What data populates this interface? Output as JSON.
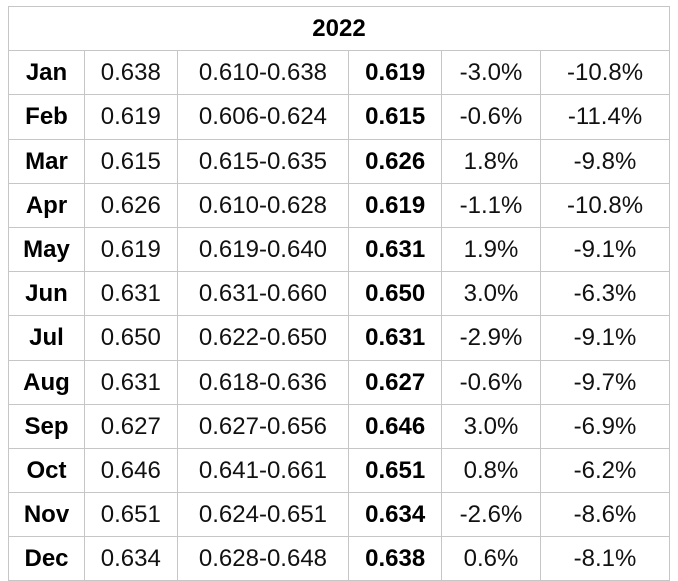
{
  "year": "2022",
  "rows": [
    {
      "month": "Jan",
      "open": "0.638",
      "range": "0.610-0.638",
      "close": "0.619",
      "pct1": "-3.0%",
      "pct2": "-10.8%"
    },
    {
      "month": "Feb",
      "open": "0.619",
      "range": "0.606-0.624",
      "close": "0.615",
      "pct1": "-0.6%",
      "pct2": "-11.4%"
    },
    {
      "month": "Mar",
      "open": "0.615",
      "range": "0.615-0.635",
      "close": "0.626",
      "pct1": "1.8%",
      "pct2": "-9.8%"
    },
    {
      "month": "Apr",
      "open": "0.626",
      "range": "0.610-0.628",
      "close": "0.619",
      "pct1": "-1.1%",
      "pct2": "-10.8%"
    },
    {
      "month": "May",
      "open": "0.619",
      "range": "0.619-0.640",
      "close": "0.631",
      "pct1": "1.9%",
      "pct2": "-9.1%"
    },
    {
      "month": "Jun",
      "open": "0.631",
      "range": "0.631-0.660",
      "close": "0.650",
      "pct1": "3.0%",
      "pct2": "-6.3%"
    },
    {
      "month": "Jul",
      "open": "0.650",
      "range": "0.622-0.650",
      "close": "0.631",
      "pct1": "-2.9%",
      "pct2": "-9.1%"
    },
    {
      "month": "Aug",
      "open": "0.631",
      "range": "0.618-0.636",
      "close": "0.627",
      "pct1": "-0.6%",
      "pct2": "-9.7%"
    },
    {
      "month": "Sep",
      "open": "0.627",
      "range": "0.627-0.656",
      "close": "0.646",
      "pct1": "3.0%",
      "pct2": "-6.9%"
    },
    {
      "month": "Oct",
      "open": "0.646",
      "range": "0.641-0.661",
      "close": "0.651",
      "pct1": "0.8%",
      "pct2": "-6.2%"
    },
    {
      "month": "Nov",
      "open": "0.651",
      "range": "0.624-0.651",
      "close": "0.634",
      "pct1": "-2.6%",
      "pct2": "-8.6%"
    },
    {
      "month": "Dec",
      "open": "0.634",
      "range": "0.628-0.648",
      "close": "0.638",
      "pct1": "0.6%",
      "pct2": "-8.1%"
    }
  ],
  "style": {
    "border_color": "#c6c6c6",
    "text_color": "#111111",
    "bold_color": "#000000",
    "background": "#ffffff",
    "columns": [
      "month",
      "open",
      "range",
      "close",
      "pct1",
      "pct2"
    ]
  }
}
